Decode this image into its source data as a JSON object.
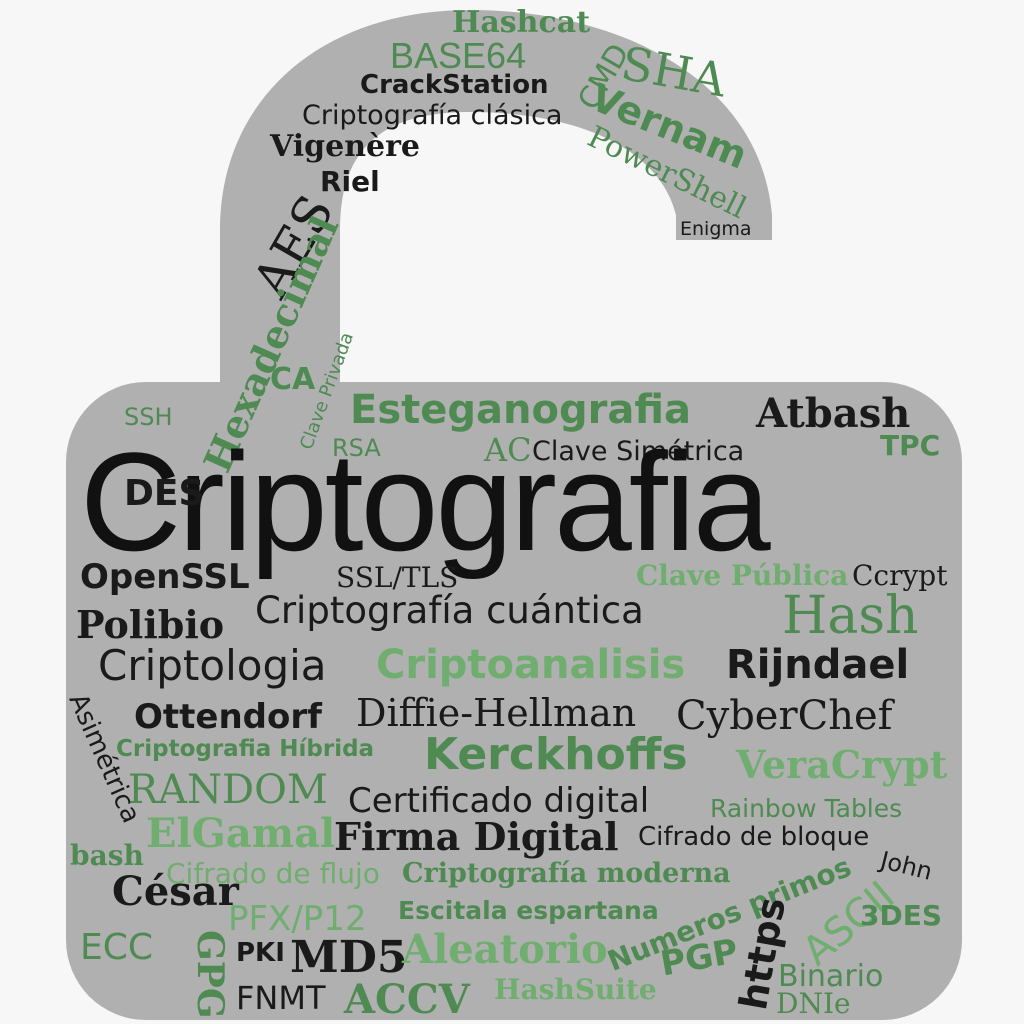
{
  "colors": {
    "background": "#f7f7f7",
    "lock": "#b0b0b0",
    "dark": "#1a1a1a",
    "green": "#4e8a52",
    "light_green": "#6fae6f"
  },
  "words": {
    "hashcat": "Hashcat",
    "base64": "BASE64",
    "cmd": "CMD",
    "sha": "SHA",
    "crackstation": "CrackStation",
    "vernam": "Vernam",
    "cripto_clasica": "Criptografía clásica",
    "powershell": "PowerShell",
    "vigenere": "Vigenère",
    "riel": "Riel",
    "enigma": "Enigma",
    "aes": "AES",
    "hexadecimal": "Hexadecimal",
    "clave_privada": "Clave Privada",
    "ca": "CA",
    "ssh": "SSH",
    "esteganografia": "Esteganografia",
    "atbash": "Atbash",
    "rsa": "RSA",
    "ac": "AC",
    "clave_simetrica": "Clave Simétrica",
    "tpc": "TPC",
    "criptografia": "Criptografia",
    "des": "DES",
    "openssl": "OpenSSL",
    "ssl_tls": "SSL/TLS",
    "clave_publica": "Clave Pública",
    "ccrypt": "Ccrypt",
    "polibio": "Polibio",
    "cripto_cuantica": "Criptografía cuántica",
    "hash": "Hash",
    "criptologia": "Criptologia",
    "criptoanalisis": "Criptoanalisis",
    "rijndael": "Rijndael",
    "asimetrica": "Asimétrica",
    "ottendorf": "Ottendorf",
    "diffie": "Diffie-Hellman",
    "cyberchef": "CyberChef",
    "cripto_hibrida": "Criptografia Híbrida",
    "kerckhoffs": "Kerckhoffs",
    "veracrypt": "VeraCrypt",
    "random": "RANDOM",
    "certificado": "Certificado digital",
    "rainbow": "Rainbow Tables",
    "elgamal": "ElGamal",
    "firma": "Firma Digital",
    "cifrado_bloque": "Cifrado de bloque",
    "bash": "bash",
    "cifrado_flujo": "Cifrado de flujo",
    "cripto_moderna": "Criptografía moderna",
    "john": "John",
    "cesar": "César",
    "numeros_primos": "Numeros primos",
    "ascii": "ASCII",
    "pfx": "PFX/P12",
    "escitala": "Escitala espartana",
    "https": "https",
    "3des": "3DES",
    "ecc": "ECC",
    "gpg": "GPG",
    "pki": "PKI",
    "md5": "MD5",
    "aleatorio": "Aleatorio",
    "pgp": "PGP",
    "binario": "Binario",
    "fnmt": "FNMT",
    "accv": "ACCV",
    "hashsuite": "HashSuite",
    "dnie": "DNIe"
  }
}
